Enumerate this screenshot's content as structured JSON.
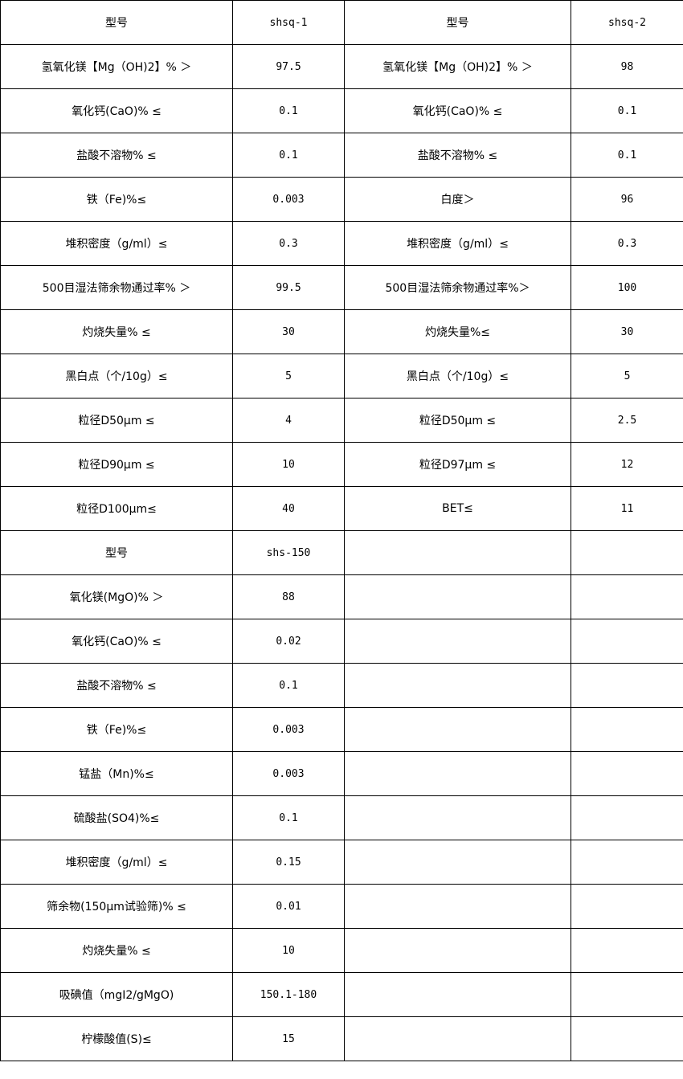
{
  "table": {
    "rows": [
      [
        "型号",
        "shsq-1",
        "型号",
        "shsq-2"
      ],
      [
        "氢氧化镁【Mg（OH)2】%  ＞",
        "97.5",
        "氢氧化镁【Mg（OH)2】%  ＞",
        "98"
      ],
      [
        "氧化钙(CaO)%  ≤",
        "0.1",
        "氧化钙(CaO)%  ≤",
        "0.1"
      ],
      [
        "盐酸不溶物%  ≤",
        "0.1",
        "盐酸不溶物%  ≤",
        "0.1"
      ],
      [
        "铁（Fe)%≤",
        "0.003",
        "白度＞",
        "96"
      ],
      [
        "堆积密度（g/ml）≤",
        "0.3",
        "堆积密度（g/ml）≤",
        "0.3"
      ],
      [
        "500目湿法筛余物通过率%  ＞",
        "99.5",
        "500目湿法筛余物通过率%＞",
        "100"
      ],
      [
        "灼烧失量%  ≤",
        "30",
        "灼烧失量%≤",
        "30"
      ],
      [
        "黑白点（个/10g）≤",
        "5",
        "黑白点（个/10g）≤",
        "5"
      ],
      [
        "粒径D50μm  ≤",
        "4",
        "粒径D50μm  ≤",
        "2.5"
      ],
      [
        "粒径D90μm  ≤",
        "10",
        "粒径D97μm  ≤",
        "12"
      ],
      [
        "粒径D100μm≤",
        "40",
        "BET≤",
        "11"
      ],
      [
        "型号",
        "shs-150",
        "",
        ""
      ],
      [
        "氧化镁(MgO)%  ＞",
        "88",
        "",
        ""
      ],
      [
        "氧化钙(CaO)%  ≤",
        "0.02",
        "",
        ""
      ],
      [
        "盐酸不溶物%  ≤",
        "0.1",
        "",
        ""
      ],
      [
        "铁（Fe)%≤",
        "0.003",
        "",
        ""
      ],
      [
        "锰盐（Mn)%≤",
        "0.003",
        "",
        ""
      ],
      [
        "硫酸盐(SO4)%≤",
        "0.1",
        "",
        ""
      ],
      [
        "堆积密度（g/ml）≤",
        "0.15",
        "",
        ""
      ],
      [
        "筛余物(150μm试验筛)%  ≤",
        "0.01",
        "",
        ""
      ],
      [
        "灼烧失量%  ≤",
        "10",
        "",
        ""
      ],
      [
        "吸碘值（mgI2/gMgO)",
        "150.1-180",
        "",
        ""
      ],
      [
        "柠檬酸值(S)≤",
        "15",
        "",
        ""
      ]
    ]
  }
}
